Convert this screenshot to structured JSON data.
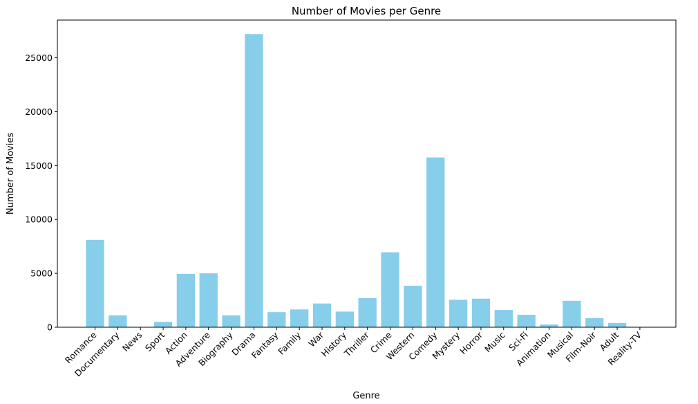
{
  "chart_data": {
    "type": "bar",
    "title": "Number of Movies per Genre",
    "xlabel": "Genre",
    "ylabel": "Number of Movies",
    "categories": [
      "Romance",
      "Documentary",
      "News",
      "Sport",
      "Action",
      "Adventure",
      "Biography",
      "Drama",
      "Fantasy",
      "Family",
      "War",
      "History",
      "Thriller",
      "Crime",
      "Western",
      "Comedy",
      "Mystery",
      "Horror",
      "Music",
      "Sci-Fi",
      "Animation",
      "Musical",
      "Film-Noir",
      "Adult",
      "Reality-TV"
    ],
    "values": [
      8100,
      1100,
      30,
      500,
      4950,
      5000,
      1100,
      27200,
      1400,
      1650,
      2200,
      1450,
      2700,
      6950,
      3850,
      15750,
      2550,
      2650,
      1600,
      1150,
      250,
      2450,
      850,
      400,
      15
    ],
    "ylim": [
      0,
      28500
    ],
    "yticks": [
      0,
      5000,
      10000,
      15000,
      20000,
      25000
    ],
    "bar_color": "#87CEEB",
    "grid": false,
    "legend": "none"
  }
}
